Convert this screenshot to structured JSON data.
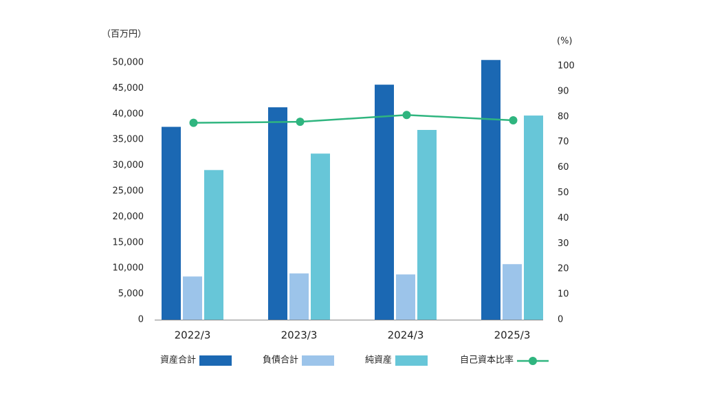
{
  "chart_data": {
    "type": "bar_line",
    "y_unit": "（百万円）",
    "y2_unit": "(%)",
    "categories": [
      "2022/3",
      "2023/3",
      "2024/3",
      "2025/3"
    ],
    "series": [
      {
        "name": "資産合計",
        "type": "bar",
        "color": "#1b68b3",
        "values": [
          37500,
          41300,
          45700,
          50500
        ]
      },
      {
        "name": "負債合計",
        "type": "bar",
        "color": "#9cc4ea",
        "values": [
          8400,
          9000,
          8800,
          10800
        ]
      },
      {
        "name": "純資産",
        "type": "bar",
        "color": "#67c6d8",
        "values": [
          29100,
          32300,
          36900,
          39700
        ]
      },
      {
        "name": "自己資本比率",
        "type": "line",
        "axis": "y2",
        "color": "#2fb57f",
        "values": [
          77.6,
          78.0,
          80.7,
          78.6
        ]
      }
    ],
    "ylim": [
      0,
      50000
    ],
    "yticks": [
      0,
      {
        "value": 5000,
        "label": "5,000"
      },
      {
        "value": 10000,
        "label": "10,000"
      },
      {
        "value": 15000,
        "label": "15,000"
      },
      {
        "value": 20000,
        "label": "20,000"
      },
      {
        "value": 25000,
        "label": "25,000"
      },
      {
        "value": 30000,
        "label": "30,000"
      },
      {
        "value": 35000,
        "label": "35,000"
      },
      {
        "value": 40000,
        "label": "40,000"
      },
      {
        "value": 45000,
        "label": "45,000"
      },
      {
        "value": 50000,
        "label": "50,000"
      }
    ],
    "y2lim": [
      0,
      100
    ],
    "y2ticks": [
      0,
      10,
      20,
      30,
      40,
      50,
      60,
      70,
      80,
      90,
      100
    ],
    "grid": false
  }
}
